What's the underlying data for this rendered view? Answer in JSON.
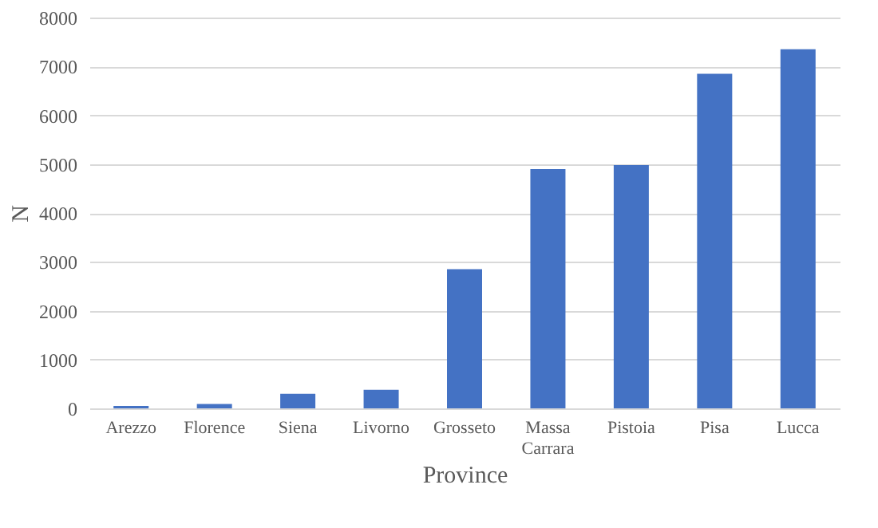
{
  "chart_data": {
    "type": "bar",
    "xlabel": "Province",
    "ylabel": "N",
    "categories": [
      "Arezzo",
      "Florence",
      "Siena",
      "Livorno",
      "Grosseto",
      "Massa Carrara",
      "Pistoia",
      "Pisa",
      "Lucca"
    ],
    "values": [
      50,
      90,
      300,
      380,
      2850,
      4900,
      4980,
      6850,
      7350
    ],
    "color": "#4472c4",
    "ylim": [
      0,
      8000
    ],
    "yticks": [
      0,
      1000,
      2000,
      3000,
      4000,
      5000,
      6000,
      7000,
      8000
    ],
    "grid": "y"
  }
}
